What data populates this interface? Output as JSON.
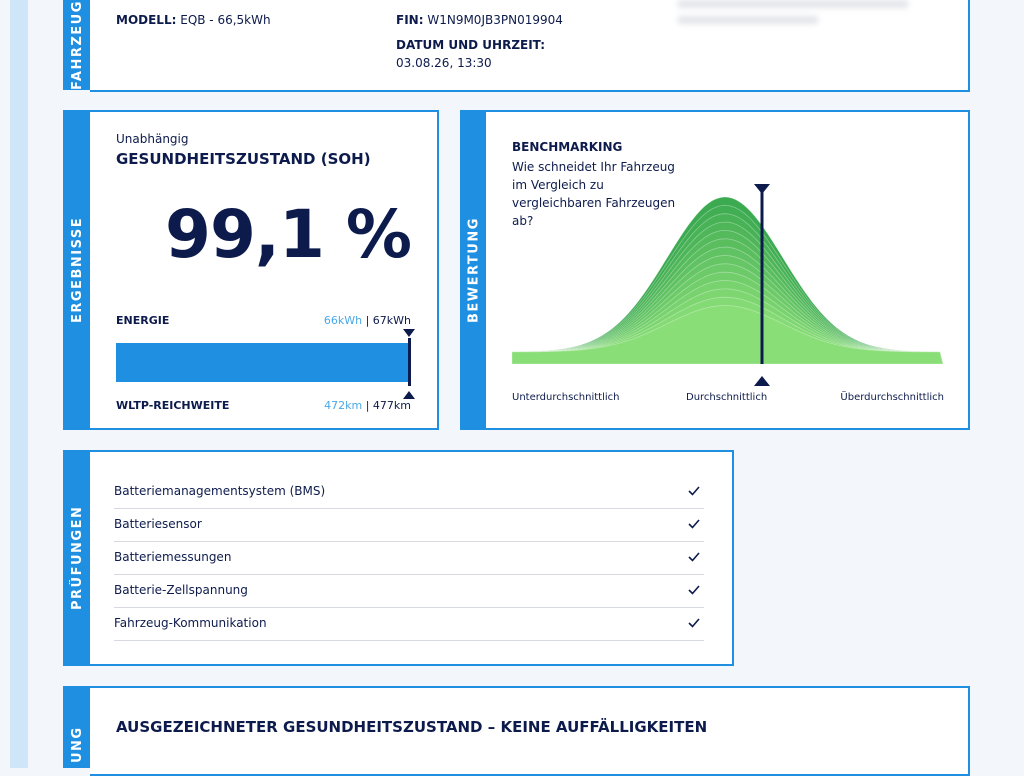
{
  "vehicle": {
    "section_label": "FAHRZEUG",
    "model_label": "MODELL:",
    "model": "EQB - 66,5kWh",
    "fin_label": "FIN:",
    "fin": "W1N9M0JB3PN019904",
    "date_label": "DATUM UND UHRZEIT:",
    "date": "03.08.26, 13:30"
  },
  "results": {
    "section_label": "ERGEBNISSE",
    "kicker": "Unabhängig",
    "title": "GESUNDHEITSZUSTAND (SOH)",
    "soh": "99,1 %",
    "energy_label": "ENERGIE",
    "energy_current": "66kWh",
    "energy_total": "| 67kWh",
    "range_label": "WLTP-REICHWEITE",
    "range_current": "472km",
    "range_total": "| 477km"
  },
  "rating": {
    "section_label": "BEWERTUNG",
    "title": "BENCHMARKING",
    "question": "Wie schneidet Ihr Fahrzeug im Vergleich zu vergleichbaren Fahrzeugen ab?",
    "axis_labels": [
      "Unterdurchschnittlich",
      "Durchschnittlich",
      "Überdurchschnittlich"
    ]
  },
  "checks": {
    "section_label": "PRÜFUNGEN",
    "items": [
      "Batteriemanagementsystem (BMS)",
      "Batteriesensor",
      "Batteriemessungen",
      "Batterie-Zellspannung",
      "Fahrzeug-Kommunikation"
    ]
  },
  "summary": {
    "section_label": "UNG",
    "title": "AUSGEZEICHNETER GESUNDHEITSZUSTAND – KEINE AUFFÄLLIGKEITEN"
  }
}
